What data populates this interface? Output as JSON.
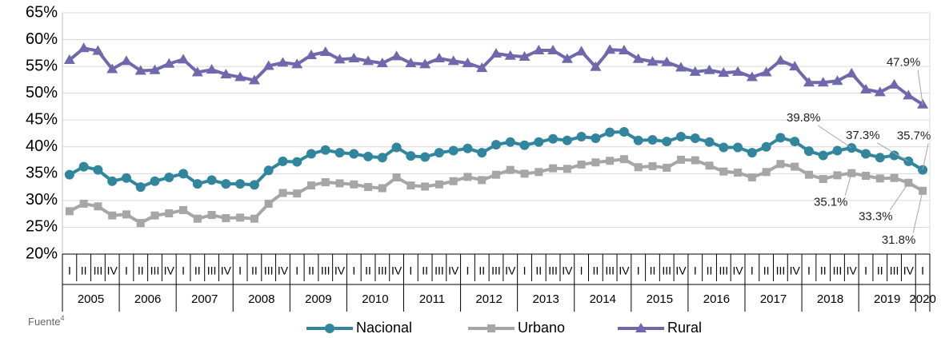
{
  "chart_data": {
    "type": "line",
    "categories": [
      "I",
      "II",
      "III",
      "IV",
      "I",
      "II",
      "III",
      "IV",
      "I",
      "II",
      "III",
      "IV",
      "I",
      "II",
      "III",
      "IV",
      "I",
      "II",
      "III",
      "IV",
      "I",
      "II",
      "III",
      "IV",
      "I",
      "II",
      "III",
      "IV",
      "I",
      "II",
      "III",
      "IV",
      "I",
      "II",
      "III",
      "IV",
      "I",
      "II",
      "III",
      "IV",
      "I",
      "II",
      "III",
      "IV",
      "I",
      "II",
      "III",
      "IV",
      "I",
      "II",
      "III",
      "IV",
      "I",
      "II",
      "III",
      "IV",
      "I",
      "II",
      "III",
      "IV",
      "I"
    ],
    "category_groups": [
      "2005",
      "2006",
      "2007",
      "2008",
      "2009",
      "2010",
      "2011",
      "2012",
      "2013",
      "2014",
      "2015",
      "2016",
      "2017",
      "2018",
      "2019",
      "2020"
    ],
    "series": [
      {
        "name": "Nacional",
        "color": "#31859c",
        "marker": "circle",
        "values": [
          34.8,
          36.3,
          35.7,
          33.6,
          34.2,
          32.5,
          33.6,
          34.3,
          35.0,
          33.1,
          33.8,
          33.1,
          33.1,
          32.9,
          35.6,
          37.3,
          37.2,
          38.7,
          39.4,
          38.9,
          38.7,
          38.2,
          38.0,
          39.9,
          38.3,
          38.1,
          38.9,
          39.3,
          39.7,
          38.9,
          40.4,
          40.9,
          40.3,
          40.9,
          41.5,
          41.2,
          41.9,
          41.6,
          42.7,
          42.8,
          41.2,
          41.3,
          41.0,
          41.9,
          41.6,
          40.9,
          39.9,
          39.9,
          38.9,
          40.0,
          41.7,
          41.0,
          39.2,
          38.4,
          39.3,
          39.8,
          38.7,
          38.0,
          38.4,
          37.3,
          35.7
        ],
        "value_labels": [
          null,
          null,
          null,
          null,
          null,
          null,
          null,
          null,
          null,
          null,
          null,
          null,
          null,
          null,
          null,
          null,
          null,
          null,
          null,
          null,
          null,
          null,
          null,
          null,
          null,
          null,
          null,
          null,
          null,
          null,
          null,
          null,
          null,
          null,
          null,
          null,
          null,
          null,
          null,
          null,
          null,
          null,
          null,
          null,
          null,
          null,
          null,
          null,
          null,
          null,
          null,
          null,
          null,
          null,
          null,
          "39.8%",
          null,
          null,
          null,
          "37.3%",
          "35.7%"
        ]
      },
      {
        "name": "Urbano",
        "color": "#a6a6a6",
        "marker": "square",
        "values": [
          28.0,
          29.4,
          28.9,
          27.2,
          27.4,
          25.8,
          27.2,
          27.6,
          28.2,
          26.6,
          27.3,
          26.7,
          26.8,
          26.6,
          29.4,
          31.4,
          31.3,
          32.8,
          33.4,
          33.2,
          33.0,
          32.5,
          32.3,
          34.3,
          32.8,
          32.6,
          33.0,
          33.6,
          34.4,
          33.8,
          34.8,
          35.7,
          35.0,
          35.3,
          36.0,
          35.9,
          36.7,
          37.1,
          37.4,
          37.7,
          36.2,
          36.4,
          36.1,
          37.6,
          37.5,
          36.5,
          35.4,
          35.2,
          34.3,
          35.3,
          36.8,
          36.3,
          34.8,
          34.0,
          34.7,
          35.1,
          34.6,
          34.1,
          34.2,
          33.3,
          31.8
        ],
        "value_labels": [
          null,
          null,
          null,
          null,
          null,
          null,
          null,
          null,
          null,
          null,
          null,
          null,
          null,
          null,
          null,
          null,
          null,
          null,
          null,
          null,
          null,
          null,
          null,
          null,
          null,
          null,
          null,
          null,
          null,
          null,
          null,
          null,
          null,
          null,
          null,
          null,
          null,
          null,
          null,
          null,
          null,
          null,
          null,
          null,
          null,
          null,
          null,
          null,
          null,
          null,
          null,
          null,
          null,
          null,
          null,
          "35.1%",
          null,
          null,
          null,
          "33.3%",
          "31.8%"
        ]
      },
      {
        "name": "Rural",
        "color": "#6f68ad",
        "marker": "triangle",
        "values": [
          56.2,
          58.4,
          57.9,
          54.5,
          56.0,
          54.2,
          54.3,
          55.5,
          56.3,
          53.9,
          54.4,
          53.5,
          53.0,
          52.4,
          55.1,
          55.7,
          55.4,
          57.1,
          57.7,
          56.3,
          56.5,
          56.0,
          55.6,
          56.9,
          55.6,
          55.4,
          56.5,
          56.0,
          55.6,
          54.7,
          57.4,
          57.0,
          56.8,
          58.0,
          58.0,
          56.4,
          57.8,
          54.9,
          58.1,
          58.0,
          56.4,
          55.9,
          55.8,
          54.8,
          54.0,
          54.3,
          53.8,
          54.0,
          53.0,
          53.9,
          56.1,
          55.0,
          52.0,
          52.0,
          52.3,
          53.7,
          50.7,
          50.2,
          51.6,
          49.6,
          47.9
        ],
        "value_labels": [
          null,
          null,
          null,
          null,
          null,
          null,
          null,
          null,
          null,
          null,
          null,
          null,
          null,
          null,
          null,
          null,
          null,
          null,
          null,
          null,
          null,
          null,
          null,
          null,
          null,
          null,
          null,
          null,
          null,
          null,
          null,
          null,
          null,
          null,
          null,
          null,
          null,
          null,
          null,
          null,
          null,
          null,
          null,
          null,
          null,
          null,
          null,
          null,
          null,
          null,
          null,
          null,
          null,
          null,
          null,
          null,
          null,
          null,
          null,
          null,
          "47.9%"
        ]
      }
    ],
    "ylim": [
      20,
      65
    ],
    "yticks": [
      {
        "value": 20,
        "label": "20%"
      },
      {
        "value": 25,
        "label": "25%"
      },
      {
        "value": 30,
        "label": "30%"
      },
      {
        "value": 35,
        "label": "35%"
      },
      {
        "value": 40,
        "label": "40%"
      },
      {
        "value": 45,
        "label": "45%"
      },
      {
        "value": 50,
        "label": "50%"
      },
      {
        "value": 55,
        "label": "55%"
      },
      {
        "value": 60,
        "label": "60%"
      },
      {
        "value": 65,
        "label": "65%"
      }
    ],
    "grid": true,
    "legend": "bottom",
    "source": {
      "text": "Fuente",
      "sup": "4"
    }
  }
}
